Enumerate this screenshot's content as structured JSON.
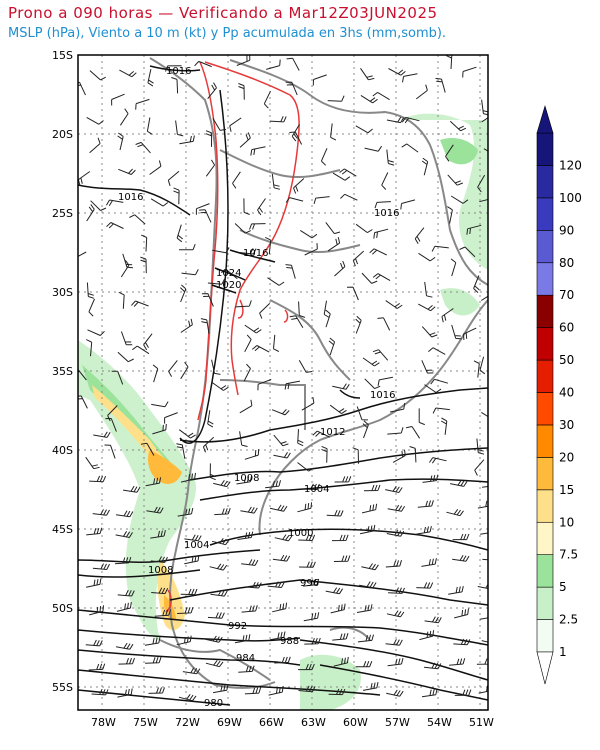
{
  "title_line1": "Prono a 090 horas — Verificando a Mar12Z03JUN2025",
  "title_line2": "MSLP (hPa), Viento a 10 m (kt) y Pp acumulada en 3hs (mm,somb).",
  "lat_ticks": [
    "15S",
    "20S",
    "25S",
    "30S",
    "35S",
    "40S",
    "45S",
    "50S",
    "55S"
  ],
  "lon_ticks": [
    "78W",
    "75W",
    "72W",
    "69W",
    "66W",
    "63W",
    "60W",
    "57W",
    "54W",
    "51W"
  ],
  "colorbar": {
    "labels": [
      "1",
      "2.5",
      "5",
      "7.5",
      "10",
      "15",
      "20",
      "30",
      "40",
      "50",
      "60",
      "70",
      "80",
      "90",
      "100",
      "120"
    ],
    "colors": [
      "#f2fcf2",
      "#c8f0c8",
      "#9be29b",
      "#fff6c8",
      "#ffe08a",
      "#ffba3c",
      "#ff8a00",
      "#ff4a00",
      "#e61e00",
      "#c00000",
      "#8a0000",
      "#7a7ae6",
      "#5a5ad2",
      "#3a3abe",
      "#2a2aa0",
      "#15157a"
    ]
  },
  "isobar_labels": [
    "1016",
    "1016",
    "1016",
    "1024",
    "1020",
    "1016",
    "1016",
    "1012",
    "1008",
    "1004",
    "1004",
    "1000",
    "1008",
    "996",
    "992",
    "988",
    "984",
    "980"
  ]
}
